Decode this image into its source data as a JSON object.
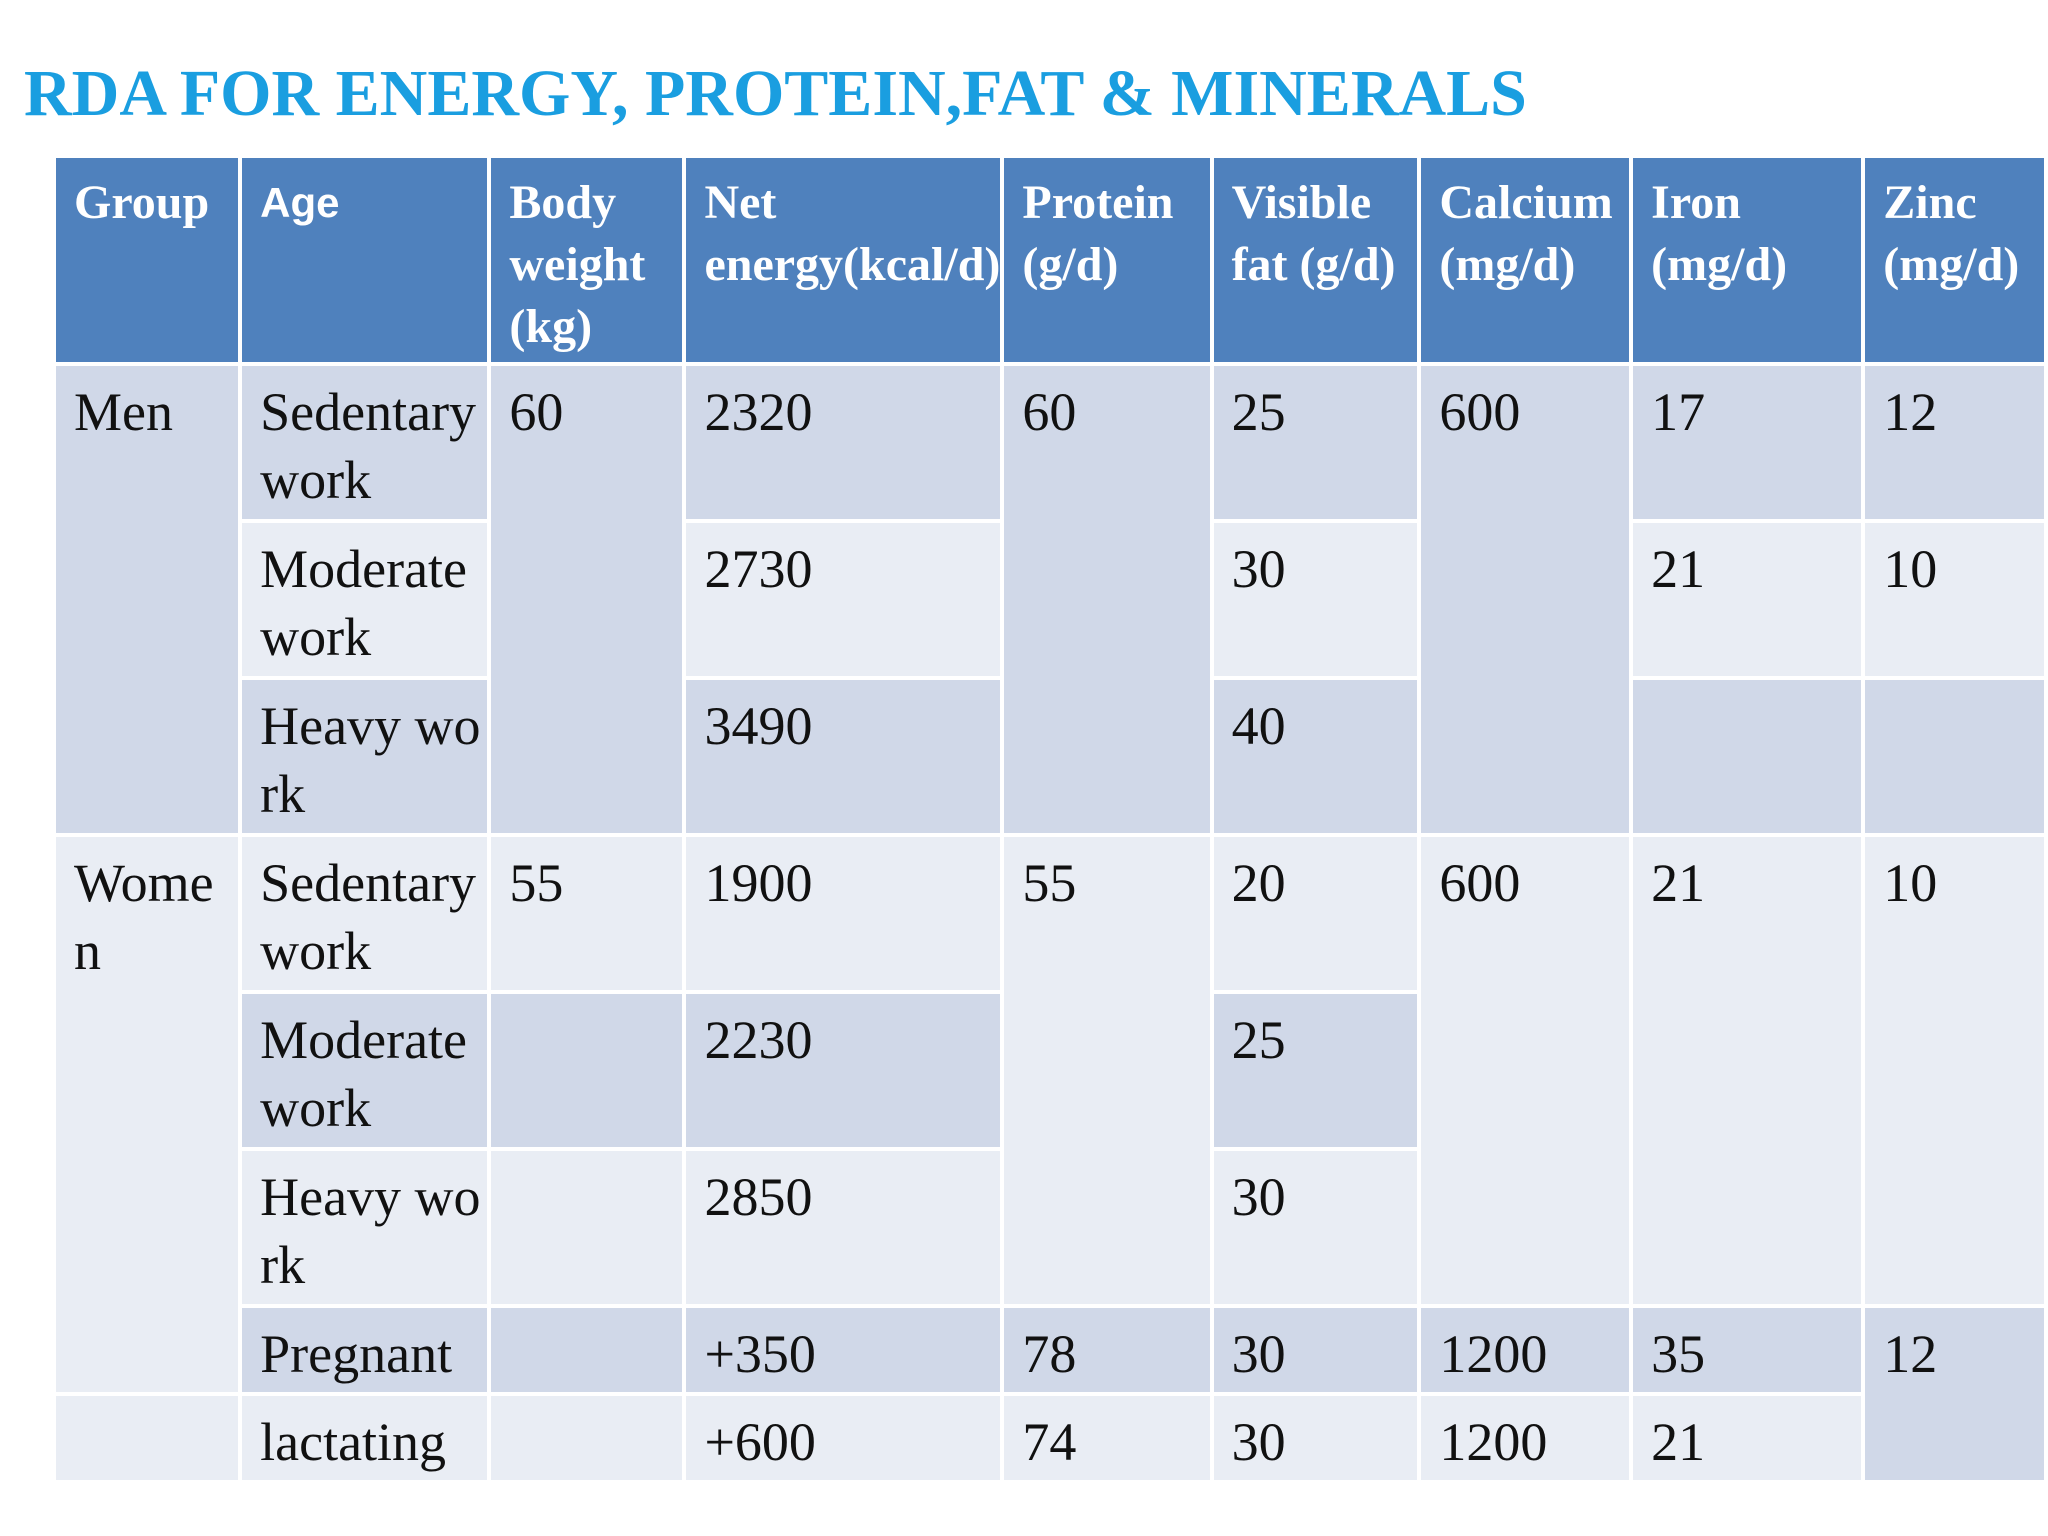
{
  "title": "RDA FOR ENERGY, PROTEIN,FAT & MINERALS",
  "colors": {
    "title": "#1a9ee0",
    "header_bg": "#4f81bd",
    "band_dark": "#d0d8e8",
    "band_light": "#e9edf4"
  },
  "headers": {
    "group": "Group",
    "age": "Age",
    "body_weight": "Body weight (kg)",
    "net_energy": "Net energy(kcal/d)",
    "protein": "Protein (g/d)",
    "visible_fat": "Visible fat (g/d)",
    "calcium": "Calcium (mg/d)",
    "iron": "Iron (mg/d)",
    "zinc": "Zinc (mg/d)"
  },
  "men": {
    "group": "Men",
    "body_weight": "60",
    "protein": "60",
    "calcium": "600",
    "rows": [
      {
        "age": "Sedentary work",
        "energy": "2320",
        "fat": "25",
        "iron": "17",
        "zinc": "12"
      },
      {
        "age": "Moderate work",
        "energy": "2730",
        "fat": "30",
        "iron": "21",
        "zinc": "10"
      },
      {
        "age": "Heavy work",
        "energy": "3490",
        "fat": "40",
        "iron": "",
        "zinc": ""
      }
    ]
  },
  "women": {
    "group": "Women",
    "body_weight": "55",
    "protein": "55",
    "calcium": "600",
    "iron": "21",
    "zinc": "10",
    "rows": [
      {
        "age": "Sedentary work",
        "energy": "1900",
        "fat": "20"
      },
      {
        "age": "Moderate work",
        "energy": "2230",
        "fat": "25"
      },
      {
        "age": "Heavy work",
        "energy": "2850",
        "fat": "30"
      }
    ],
    "pregnant": {
      "age": "Pregnant",
      "energy": "+350",
      "protein": "78",
      "fat": "30",
      "calcium": "1200",
      "iron": "35",
      "zinc": "12"
    },
    "lactating": {
      "age": "lactating",
      "energy": "+600",
      "protein": "74",
      "fat": "30",
      "calcium": "1200",
      "iron": "21"
    }
  }
}
